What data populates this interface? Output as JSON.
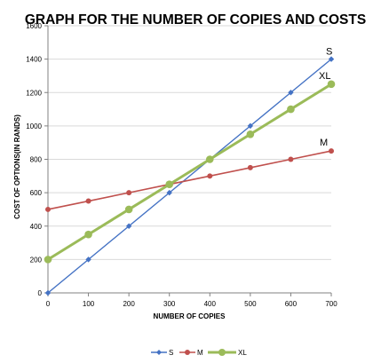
{
  "chart_data": {
    "type": "line",
    "title": "GRAPH FOR THE NUMBER OF COPIES AND COSTS",
    "xlabel": "NUMBER OF COPIES",
    "ylabel": "COST OF OPTIONS(IN RANDS)",
    "x": [
      0,
      100,
      200,
      300,
      400,
      500,
      600,
      700
    ],
    "xlim": [
      0,
      700
    ],
    "ylim": [
      0,
      1600
    ],
    "x_ticks": [
      "0",
      "100",
      "200",
      "300",
      "400",
      "500",
      "600",
      "700"
    ],
    "y_ticks": [
      "0",
      "200",
      "400",
      "600",
      "800",
      "1000",
      "1200",
      "1400",
      "1600"
    ],
    "grid": "horizontal",
    "legend_position": "bottom",
    "series": [
      {
        "name": "S",
        "color": "#4472C4",
        "marker": "diamond",
        "values": [
          0,
          200,
          400,
          600,
          800,
          1000,
          1200,
          1400
        ]
      },
      {
        "name": "M",
        "color": "#C0504D",
        "marker": "circle",
        "values": [
          500,
          550,
          600,
          650,
          700,
          750,
          800,
          850
        ]
      },
      {
        "name": "XL",
        "color": "#9BBB59",
        "marker": "circle",
        "values": [
          200,
          350,
          500,
          650,
          800,
          950,
          1100,
          1250
        ]
      }
    ]
  }
}
